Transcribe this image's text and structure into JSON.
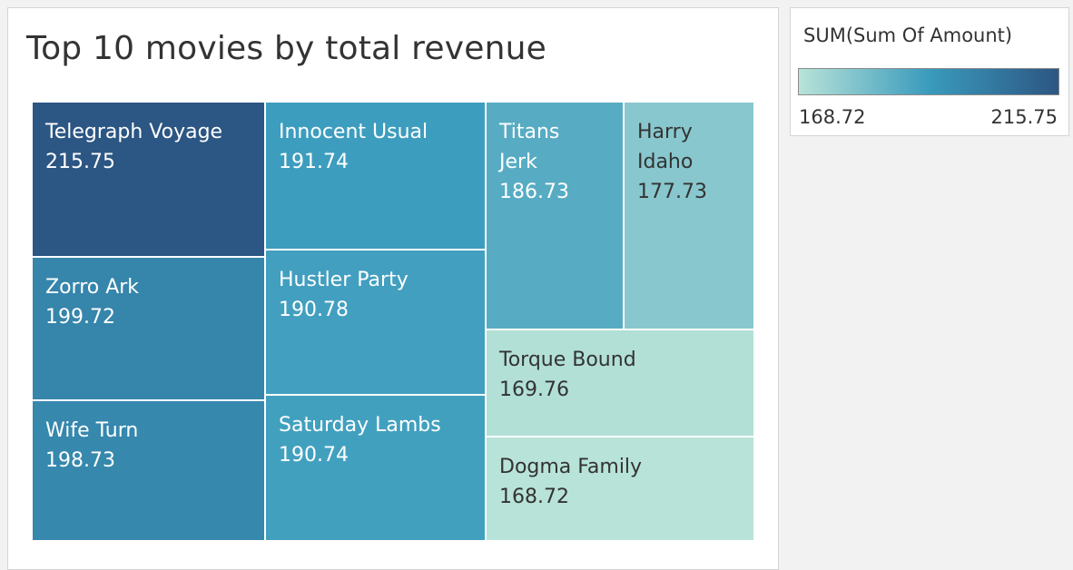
{
  "chart_data": {
    "type": "treemap",
    "title": "Top 10 movies by total revenue",
    "measure": "SUM(Sum Of Amount)",
    "items": [
      {
        "name": "Telegraph Voyage",
        "value": 215.75,
        "label": "Telegraph Voyage"
      },
      {
        "name": "Zorro Ark",
        "value": 199.72,
        "label": "Zorro Ark"
      },
      {
        "name": "Wife Turn",
        "value": 198.73,
        "label": "Wife Turn"
      },
      {
        "name": "Innocent Usual",
        "value": 191.74,
        "label": "Innocent Usual"
      },
      {
        "name": "Hustler Party",
        "value": 190.78,
        "label": "Hustler Party"
      },
      {
        "name": "Saturday Lambs",
        "value": 190.74,
        "label": "Saturday Lambs"
      },
      {
        "name": "Titans Jerk",
        "value": 186.73,
        "label": "Titans\nJerk"
      },
      {
        "name": "Harry Idaho",
        "value": 177.73,
        "label": "Harry\nIdaho"
      },
      {
        "name": "Torque Bound",
        "value": 169.76,
        "label": "Torque Bound"
      },
      {
        "name": "Dogma Family",
        "value": 168.72,
        "label": "Dogma Family"
      }
    ],
    "color_scale": {
      "min": 168.72,
      "max": 215.75,
      "min_label": "168.72",
      "max_label": "215.75",
      "colors": [
        "#b8e3d8",
        "#3a9bbd",
        "#2c5683"
      ]
    }
  }
}
